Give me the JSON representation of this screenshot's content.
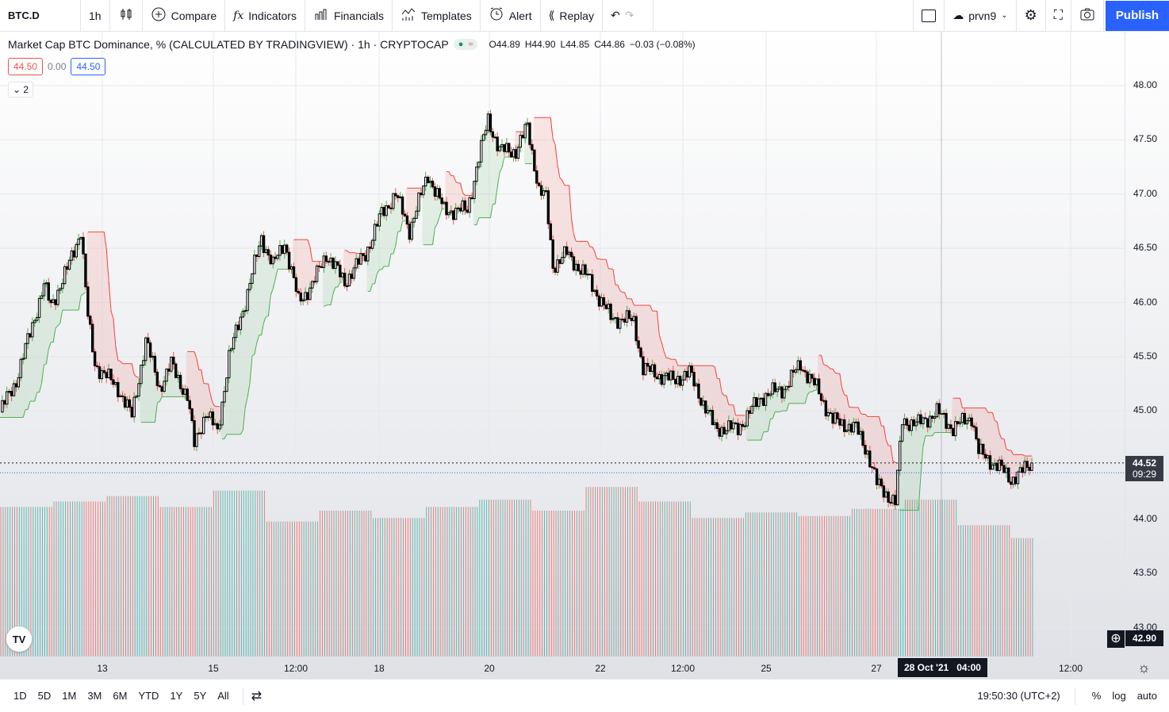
{
  "toolbar": {
    "symbol": "BTC.D",
    "interval": "1h",
    "compare": "Compare",
    "indicators": "Indicators",
    "financials": "Financials",
    "templates": "Templates",
    "alert": "Alert",
    "replay": "Replay",
    "account": "prvn9",
    "publish": "Publish"
  },
  "legend": {
    "title": "Market Cap BTC Dominance, % (CALCULATED BY TRADINGVIEW) · 1h · CRYPTOCAP",
    "o": "O44.89",
    "h": "H44.90",
    "l": "L44.85",
    "c": "C44.86",
    "change": "−0.03 (−0.08%)",
    "ind_left": "44.50",
    "ind_mid": "0.00",
    "ind_right": "44.50",
    "collapsed_count": "2"
  },
  "price_axis": {
    "labels": [
      "48.00",
      "47.50",
      "47.00",
      "46.50",
      "46.00",
      "45.50",
      "45.00",
      "44.00",
      "43.50",
      "43.00"
    ],
    "last_price": "44.52",
    "countdown": "09:29",
    "crosshair_price": "42.90"
  },
  "time_axis": {
    "labels": [
      "13",
      "15",
      "12:00",
      "18",
      "20",
      "22",
      "12:00",
      "25",
      "27",
      "12:00"
    ],
    "crosshair": "28 Oct '21   04:00"
  },
  "bottom": {
    "ranges": [
      "1D",
      "5D",
      "1M",
      "3M",
      "6M",
      "YTD",
      "1Y",
      "5Y",
      "All"
    ],
    "clock": "19:50:30 (UTC+2)",
    "pct": "%",
    "log": "log",
    "auto": "auto"
  },
  "colors": {
    "up": "#26a69a",
    "down": "#ef5350",
    "accent": "#2962ff",
    "stop_up": "#4caf50",
    "stop_down": "#f44336"
  },
  "chart_data": {
    "type": "line",
    "title": "BTC.D 1h",
    "ylim": [
      42.9,
      48.2
    ],
    "keypoints": [
      [
        0,
        44.99
      ],
      [
        7,
        45.28
      ],
      [
        19,
        46.16
      ],
      [
        22,
        45.97
      ],
      [
        29,
        46.3
      ],
      [
        35,
        46.67
      ],
      [
        38,
        45.86
      ],
      [
        41,
        45.43
      ],
      [
        51,
        45.21
      ],
      [
        57,
        44.95
      ],
      [
        63,
        45.65
      ],
      [
        69,
        45.21
      ],
      [
        74,
        45.43
      ],
      [
        81,
        45.13
      ],
      [
        84,
        44.69
      ],
      [
        89,
        44.99
      ],
      [
        94,
        44.8
      ],
      [
        99,
        45.5
      ],
      [
        106,
        46.01
      ],
      [
        113,
        46.6
      ],
      [
        118,
        46.34
      ],
      [
        123,
        46.56
      ],
      [
        129,
        46.01
      ],
      [
        135,
        46.16
      ],
      [
        141,
        46.45
      ],
      [
        149,
        46.19
      ],
      [
        158,
        46.45
      ],
      [
        165,
        46.82
      ],
      [
        171,
        47.0
      ],
      [
        177,
        46.67
      ],
      [
        185,
        47.18
      ],
      [
        192,
        46.85
      ],
      [
        202,
        46.85
      ],
      [
        207,
        47.33
      ],
      [
        211,
        47.69
      ],
      [
        216,
        47.4
      ],
      [
        223,
        47.4
      ],
      [
        228,
        47.62
      ],
      [
        233,
        47.04
      ],
      [
        236,
        46.96
      ],
      [
        239,
        46.34
      ],
      [
        245,
        46.45
      ],
      [
        254,
        46.23
      ],
      [
        264,
        45.86
      ],
      [
        274,
        45.83
      ],
      [
        278,
        45.39
      ],
      [
        291,
        45.28
      ],
      [
        298,
        45.35
      ],
      [
        309,
        44.84
      ],
      [
        319,
        44.84
      ],
      [
        329,
        45.13
      ],
      [
        339,
        45.21
      ],
      [
        346,
        45.43
      ],
      [
        353,
        45.21
      ],
      [
        360,
        44.91
      ],
      [
        370,
        44.84
      ],
      [
        375,
        44.62
      ],
      [
        379,
        44.33
      ],
      [
        387,
        44.15
      ],
      [
        390,
        44.91
      ],
      [
        397,
        44.88
      ],
      [
        405,
        44.99
      ],
      [
        412,
        44.84
      ],
      [
        420,
        44.95
      ],
      [
        423,
        44.62
      ],
      [
        432,
        44.48
      ],
      [
        437,
        44.37
      ],
      [
        442,
        44.44
      ],
      [
        446,
        44.52
      ]
    ],
    "volume_levels": [
      0.82,
      0.85,
      0.88,
      0.82,
      0.91,
      0.74,
      0.8,
      0.76,
      0.82,
      0.86,
      0.8,
      0.93,
      0.85,
      0.76,
      0.79,
      0.77,
      0.81,
      0.86,
      0.72,
      0.65
    ]
  }
}
